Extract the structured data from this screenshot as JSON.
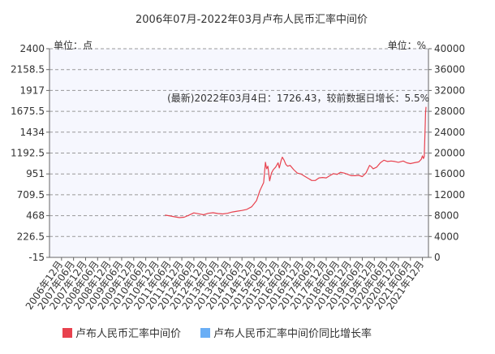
{
  "chart_data": {
    "type": "line",
    "title": "2006年07月-2022年03月卢布人民币汇率中间价",
    "left_unit": "单位：点",
    "right_unit": "单位：%",
    "annotation": "(最新)2022年03月4日：1726.43，较前数据日增长：5.5%",
    "y_left": {
      "range": [
        -15,
        2400
      ],
      "ticks": [
        "2400",
        "2158.5",
        "1917",
        "1675.5",
        "1434",
        "1192.5",
        "951",
        "709.5",
        "468",
        "226.5",
        "-15"
      ]
    },
    "y_right": {
      "range": [
        0,
        40000
      ],
      "ticks": [
        "40000",
        "36000",
        "32000",
        "28000",
        "24000",
        "20000",
        "16000",
        "12000",
        "8000",
        "4000",
        "0"
      ]
    },
    "x_ticks": [
      "2006年12月",
      "2007年06月",
      "2007年12月",
      "2008年06月",
      "2008年12月",
      "2009年06月",
      "2009年12月",
      "2010年06月",
      "2010年12月",
      "2011年06月",
      "2011年12月",
      "2012年06月",
      "2012年12月",
      "2013年06月",
      "2013年12月",
      "2014年06月",
      "2014年12月",
      "2015年06月",
      "2015年12月",
      "2016年06月",
      "2016年12月",
      "2017年06月",
      "2017年12月",
      "2018年06月",
      "2018年12月",
      "2019年06月",
      "2019年12月",
      "2020年06月",
      "2020年12月",
      "2021年06月",
      "2021年12月"
    ],
    "x_start_index": -1,
    "x_end_index": 30.5,
    "grid": true,
    "legend_position": "bottom",
    "series": [
      {
        "name": "卢布人民币汇率中间价",
        "axis": "left",
        "color": "#e8424e",
        "points": [
          [
            8.6,
            475
          ],
          [
            9.0,
            465
          ],
          [
            9.4,
            455
          ],
          [
            9.8,
            445
          ],
          [
            10.2,
            450
          ],
          [
            10.6,
            475
          ],
          [
            11.0,
            500
          ],
          [
            11.4,
            490
          ],
          [
            11.8,
            478
          ],
          [
            12.2,
            495
          ],
          [
            12.6,
            502
          ],
          [
            13.0,
            492
          ],
          [
            13.4,
            488
          ],
          [
            13.8,
            495
          ],
          [
            14.2,
            510
          ],
          [
            14.6,
            520
          ],
          [
            15.0,
            528
          ],
          [
            15.4,
            540
          ],
          [
            15.8,
            570
          ],
          [
            16.2,
            640
          ],
          [
            16.5,
            760
          ],
          [
            16.8,
            850
          ],
          [
            16.95,
            1085
          ],
          [
            17.05,
            1010
          ],
          [
            17.15,
            1040
          ],
          [
            17.3,
            870
          ],
          [
            17.45,
            960
          ],
          [
            17.6,
            1000
          ],
          [
            17.8,
            1030
          ],
          [
            18.0,
            1080
          ],
          [
            18.1,
            1020
          ],
          [
            18.25,
            1105
          ],
          [
            18.35,
            1145
          ],
          [
            18.5,
            1110
          ],
          [
            18.65,
            1060
          ],
          [
            18.8,
            1040
          ],
          [
            19.0,
            1050
          ],
          [
            19.3,
            1000
          ],
          [
            19.6,
            960
          ],
          [
            19.9,
            950
          ],
          [
            20.2,
            925
          ],
          [
            20.5,
            900
          ],
          [
            20.8,
            875
          ],
          [
            21.1,
            875
          ],
          [
            21.4,
            905
          ],
          [
            21.7,
            910
          ],
          [
            22.0,
            905
          ],
          [
            22.3,
            930
          ],
          [
            22.6,
            955
          ],
          [
            22.9,
            945
          ],
          [
            23.2,
            970
          ],
          [
            23.5,
            960
          ],
          [
            23.8,
            945
          ],
          [
            24.1,
            930
          ],
          [
            24.4,
            930
          ],
          [
            24.7,
            935
          ],
          [
            25.0,
            920
          ],
          [
            25.3,
            960
          ],
          [
            25.6,
            1050
          ],
          [
            25.75,
            1035
          ],
          [
            25.9,
            1010
          ],
          [
            26.2,
            1030
          ],
          [
            26.5,
            1080
          ],
          [
            26.8,
            1110
          ],
          [
            27.1,
            1095
          ],
          [
            27.4,
            1100
          ],
          [
            27.7,
            1095
          ],
          [
            28.0,
            1085
          ],
          [
            28.4,
            1100
          ],
          [
            28.7,
            1080
          ],
          [
            29.0,
            1070
          ],
          [
            29.3,
            1080
          ],
          [
            29.7,
            1090
          ],
          [
            29.9,
            1120
          ],
          [
            30.0,
            1160
          ],
          [
            30.08,
            1130
          ],
          [
            30.15,
            1150
          ],
          [
            30.22,
            1450
          ],
          [
            30.26,
            1655
          ],
          [
            30.3,
            1726.43
          ]
        ]
      },
      {
        "name": "卢布人民币汇率中间价同比增长率",
        "axis": "right",
        "color": "#6aaef5",
        "points": []
      }
    ]
  }
}
